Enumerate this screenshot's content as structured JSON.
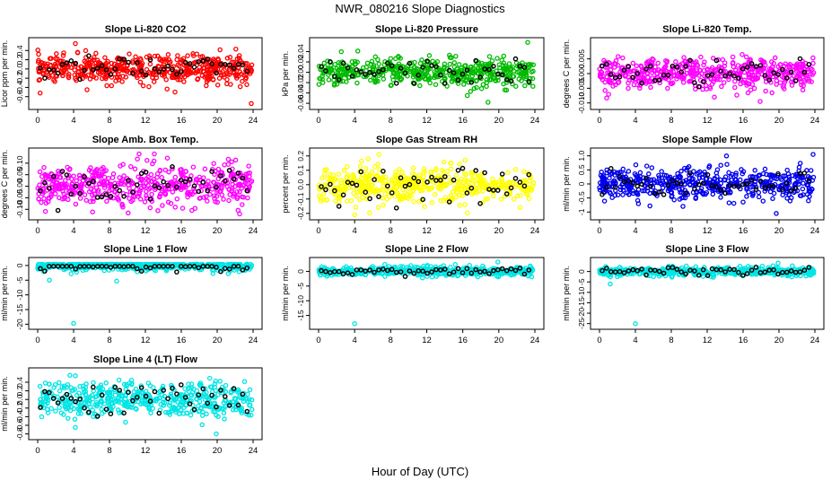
{
  "figure": {
    "title": "NWR_080216  Slope Diagnostics",
    "xlabel": "Hour of Day (UTC)"
  },
  "chart_data": [
    {
      "type": "scatter",
      "title": "Slope Li-820 CO2",
      "ylabel": "Licor ppm per min.",
      "color": "#ff0000",
      "xlim": [
        0,
        24
      ],
      "ylim": [
        -0.8,
        0.6
      ],
      "yticks": [
        -0.6,
        -0.4,
        -0.2,
        0.0,
        0.2,
        0.4
      ],
      "ytick_labels": [
        "-0.6",
        "-0.4",
        "-0.2",
        "0.0",
        "0.2",
        "0.4"
      ],
      "xticks": [
        0,
        4,
        8,
        12,
        16,
        20,
        24
      ],
      "spread": 0.15,
      "outliers": [
        [
          4.2,
          0.55
        ],
        [
          23.8,
          -0.75
        ],
        [
          5.5,
          -0.45
        ],
        [
          15.3,
          -0.5
        ]
      ],
      "n_points": 500
    },
    {
      "type": "scatter",
      "title": "Slope Li-820 Pressure",
      "ylabel": "kPa per min.",
      "color": "#00bb00",
      "xlim": [
        0,
        24
      ],
      "ylim": [
        -0.065,
        0.06
      ],
      "yticks": [
        -0.06,
        -0.04,
        -0.02,
        0.0,
        0.02,
        0.04
      ],
      "ytick_labels": [
        "-0.06",
        "-0.04",
        "-0.02",
        "0.00",
        "0.02",
        "0.04"
      ],
      "xticks": [
        0,
        4,
        8,
        12,
        16,
        20,
        24
      ],
      "spread": 0.013,
      "outliers": [
        [
          23.2,
          0.058
        ],
        [
          16.5,
          -0.045
        ],
        [
          18.8,
          -0.058
        ],
        [
          6.3,
          0.03
        ]
      ],
      "n_points": 500
    },
    {
      "type": "scatter",
      "title": "Slope Li-820 Temp.",
      "ylabel": "degrees C per min.",
      "color": "#ff00ff",
      "xlim": [
        0,
        24
      ],
      "ylim": [
        -0.011,
        0.011
      ],
      "yticks": [
        -0.01,
        -0.005,
        0.0,
        0.005
      ],
      "ytick_labels": [
        "-0.010",
        "-0.005",
        "0.000",
        "0.005"
      ],
      "xticks": [
        0,
        4,
        8,
        12,
        16,
        20,
        24
      ],
      "spread": 0.0025,
      "outliers": [
        [
          17.9,
          -0.0095
        ],
        [
          15.9,
          0.0065
        ],
        [
          12.8,
          -0.008
        ]
      ],
      "n_points": 500
    },
    {
      "type": "scatter",
      "title": "Slope Amb. Box Temp.",
      "ylabel": "degrees C per min.",
      "color": "#ff00ff",
      "xlim": [
        0,
        24
      ],
      "ylim": [
        -0.13,
        0.15
      ],
      "yticks": [
        -0.1,
        -0.05,
        0.0,
        0.05,
        0.1
      ],
      "ytick_labels": [
        "-0.10",
        "-0.05",
        "0.00",
        "0.05",
        "0.10"
      ],
      "xticks": [
        0,
        4,
        8,
        12,
        16,
        20,
        24
      ],
      "spread": 0.045,
      "outliers": [
        [
          11.3,
          0.14
        ],
        [
          13.0,
          0.14
        ],
        [
          22.5,
          -0.12
        ]
      ],
      "n_points": 500
    },
    {
      "type": "scatter",
      "title": "Slope Gas Stream RH",
      "ylabel": "percent per min.",
      "color": "#ffff00",
      "xlim": [
        0,
        24
      ],
      "ylim": [
        -0.22,
        0.23
      ],
      "yticks": [
        -0.2,
        -0.1,
        0.0,
        0.1,
        0.2
      ],
      "ytick_labels": [
        "-0.2",
        "-0.1",
        "0.0",
        "0.1",
        "0.2"
      ],
      "xticks": [
        0,
        4,
        8,
        12,
        16,
        20,
        24
      ],
      "spread": 0.06,
      "outliers": [
        [
          4.0,
          -0.21
        ],
        [
          6.7,
          0.21
        ],
        [
          5.5,
          0.18
        ]
      ],
      "n_points": 500
    },
    {
      "type": "scatter",
      "title": "Slope Sample Flow",
      "ylabel": "ml/min per min.",
      "color": "#0000ee",
      "xlim": [
        0,
        24
      ],
      "ylim": [
        -1.15,
        1.15
      ],
      "yticks": [
        -1,
        -0.5,
        0,
        0.5,
        1
      ],
      "ytick_labels": [
        "-1",
        "-0.5",
        "0",
        "0.5",
        "1.0"
      ],
      "xticks": [
        0,
        4,
        8,
        12,
        16,
        20,
        24
      ],
      "spread": 0.28,
      "outliers": [
        [
          23.8,
          1.05
        ],
        [
          19.7,
          -1.05
        ],
        [
          9.3,
          -0.8
        ]
      ],
      "n_points": 500
    },
    {
      "type": "scatter",
      "title": "Slope Line 1 Flow",
      "ylabel": "ml/min per min.",
      "color": "#00e5e5",
      "xlim": [
        0,
        24
      ],
      "ylim": [
        -20.5,
        1.5
      ],
      "yticks": [
        -20,
        -15,
        -10,
        -5,
        0
      ],
      "ytick_labels": [
        "-20",
        "-15",
        "-10",
        "-5",
        "0"
      ],
      "xticks": [
        0,
        4,
        8,
        12,
        16,
        20,
        24
      ],
      "spread": 0.9,
      "outliers": [
        [
          4.0,
          -19.7
        ],
        [
          1.3,
          -5.0
        ],
        [
          8.8,
          -5.3
        ]
      ],
      "n_points": 500
    },
    {
      "type": "scatter",
      "title": "Slope Line 2 Flow",
      "ylabel": "ml/min per min.",
      "color": "#00e5e5",
      "xlim": [
        0,
        24
      ],
      "ylim": [
        -18.5,
        3.5
      ],
      "yticks": [
        -15,
        -10,
        -5,
        0
      ],
      "ytick_labels": [
        "-15",
        "-10",
        "-5",
        "0"
      ],
      "xticks": [
        0,
        4,
        8,
        12,
        16,
        20,
        24
      ],
      "spread": 0.8,
      "outliers": [
        [
          4.0,
          -17.8
        ],
        [
          19.9,
          3.2
        ]
      ],
      "n_points": 500
    },
    {
      "type": "scatter",
      "title": "Slope Line 3 Flow",
      "ylabel": "ml/min per min.",
      "color": "#00e5e5",
      "xlim": [
        0,
        24
      ],
      "ylim": [
        -26,
        5
      ],
      "yticks": [
        -25,
        -20,
        -15,
        -10,
        -5,
        0
      ],
      "ytick_labels": [
        "-25",
        "-20",
        "-15",
        "-10",
        "-5",
        "0"
      ],
      "xticks": [
        0,
        4,
        8,
        12,
        16,
        20,
        24
      ],
      "spread": 1.0,
      "outliers": [
        [
          4.0,
          -25
        ],
        [
          1.2,
          -6.0
        ],
        [
          19.9,
          4.0
        ]
      ],
      "n_points": 500
    },
    {
      "type": "scatter",
      "title": "Slope Line 4 (LT) Flow",
      "ylabel": "ml/min per min.",
      "color": "#00e5e5",
      "xlim": [
        0,
        24
      ],
      "ylim": [
        -0.85,
        0.65
      ],
      "yticks": [
        -0.8,
        -0.6,
        -0.4,
        -0.2,
        0.0,
        0.2,
        0.4
      ],
      "ytick_labels": [
        "-0.8",
        "-0.6",
        "-0.4",
        "-0.2",
        "0.0",
        "0.2",
        "0.4"
      ],
      "xticks": [
        0,
        4,
        8,
        12,
        16,
        20,
        24
      ],
      "spread": 0.2,
      "outliers": [
        [
          4.2,
          0.55
        ],
        [
          19.9,
          -0.8
        ],
        [
          4.2,
          -0.65
        ]
      ],
      "n_points": 500
    }
  ]
}
